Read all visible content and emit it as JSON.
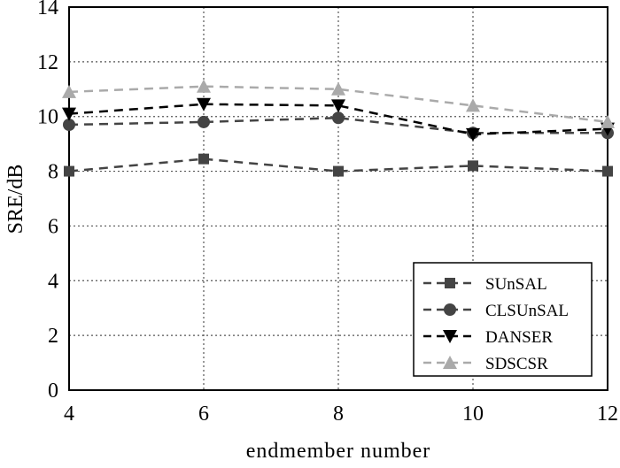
{
  "chart_data": {
    "type": "line",
    "title": "",
    "xlabel": "endmember number",
    "ylabel": "SRE/dB",
    "x": [
      4,
      6,
      8,
      10,
      12
    ],
    "xlim": [
      4,
      12
    ],
    "ylim": [
      0,
      14
    ],
    "xticks": [
      "4",
      "6",
      "8",
      "10",
      "12"
    ],
    "yticks": [
      "0",
      "2",
      "4",
      "6",
      "8",
      "10",
      "12",
      "14"
    ],
    "grid": true,
    "legend_position": "bottom-right",
    "series": [
      {
        "name": "SUnSAL",
        "values": [
          8.0,
          8.45,
          8.0,
          8.2,
          8.0
        ],
        "color": "#444444",
        "marker": "square"
      },
      {
        "name": "CLSUnSAL",
        "values": [
          9.7,
          9.8,
          9.95,
          9.4,
          9.4
        ],
        "color": "#444444",
        "marker": "circle"
      },
      {
        "name": "DANSER",
        "values": [
          10.1,
          10.45,
          10.4,
          9.35,
          9.55
        ],
        "color": "#000000",
        "marker": "triangle-down"
      },
      {
        "name": "SDSCSR",
        "values": [
          10.9,
          11.1,
          11.0,
          10.4,
          9.8
        ],
        "color": "#aaaaaa",
        "marker": "triangle-up"
      }
    ]
  }
}
